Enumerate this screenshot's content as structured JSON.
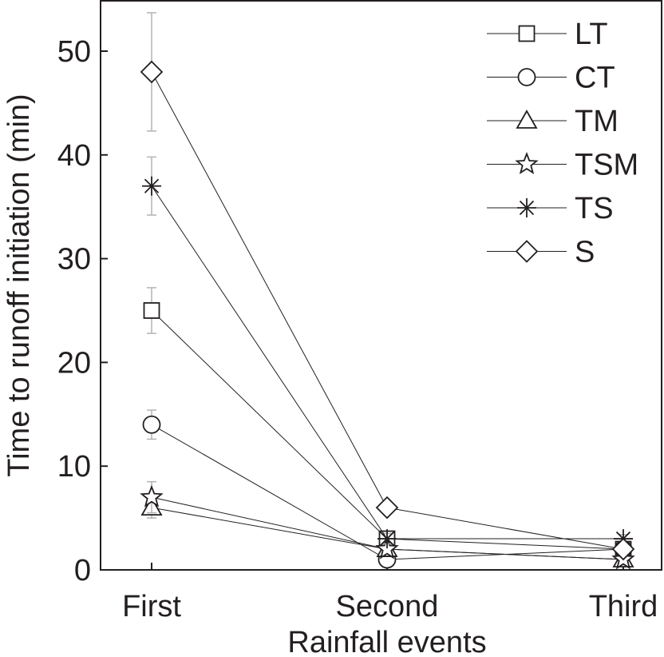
{
  "chart_data": {
    "type": "line",
    "title": "",
    "xlabel": "Rainfall events",
    "ylabel": "Time to runoff initiation (min)",
    "categories": [
      "First",
      "Second",
      "Third"
    ],
    "ylim": [
      0,
      54
    ],
    "yticks": [
      0,
      10,
      20,
      30,
      40,
      50
    ],
    "grid": false,
    "legend_position": "top-right",
    "colors": {
      "line": "#231f20",
      "errorbar": "#b3b3b3",
      "marker_fill": "#ffffff"
    },
    "series": [
      {
        "name": "LT",
        "marker": "square",
        "values": [
          25,
          3,
          2
        ],
        "errors": [
          2.2,
          0.5,
          0.4
        ]
      },
      {
        "name": "CT",
        "marker": "circle",
        "values": [
          14,
          1,
          2
        ],
        "errors": [
          1.4,
          0.3,
          0.4
        ]
      },
      {
        "name": "TM",
        "marker": "triangle",
        "values": [
          6,
          2,
          1
        ],
        "errors": [
          1.0,
          0.4,
          0.3
        ]
      },
      {
        "name": "TSM",
        "marker": "star",
        "values": [
          7,
          2,
          1
        ],
        "errors": [
          1.5,
          0.4,
          0.3
        ]
      },
      {
        "name": "TS",
        "marker": "asterisk",
        "values": [
          37,
          3,
          3
        ],
        "errors": [
          2.8,
          0.5,
          0.4
        ]
      },
      {
        "name": "S",
        "marker": "diamond",
        "values": [
          48,
          6,
          2
        ],
        "errors": [
          5.7,
          0.5,
          0.4
        ]
      }
    ]
  }
}
